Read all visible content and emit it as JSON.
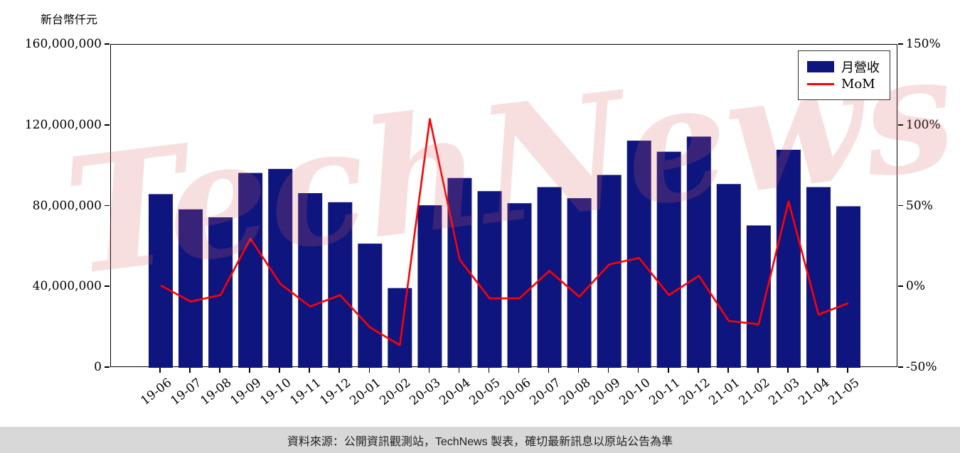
{
  "title": "新台幣仟元",
  "legend": {
    "bar_label": "月營收",
    "line_label": "MoM"
  },
  "footer": {
    "text": "資料來源：公開資訊觀測站，TechNews 製表，確切最新訊息以原站公告為準"
  },
  "watermark": "TechNews",
  "colors": {
    "bar": "#0f157e",
    "line": "#ff0000",
    "footer_bg": "#d8d8d8",
    "watermark": "rgba(214,96,96,0.20)"
  },
  "chart_data": {
    "type": "bar",
    "title": "",
    "categories": [
      "19-06",
      "19-07",
      "19-08",
      "19-09",
      "19-10",
      "19-11",
      "19-12",
      "20-01",
      "20-02",
      "20-03",
      "20-04",
      "20-05",
      "20-06",
      "20-07",
      "20-08",
      "20-09",
      "20-10",
      "20-11",
      "20-12",
      "21-01",
      "21-02",
      "21-03",
      "21-04",
      "21-05"
    ],
    "series": [
      {
        "name": "月營收",
        "type": "bar",
        "axis": "left",
        "values": [
          86000000,
          78500000,
          74500000,
          96500000,
          98500000,
          86500000,
          82000000,
          61500000,
          39500000,
          80500000,
          94000000,
          87500000,
          81500000,
          89500000,
          84000000,
          95500000,
          112500000,
          107000000,
          114500000,
          91000000,
          70500000,
          108000000,
          89500000,
          80000000
        ]
      },
      {
        "name": "MoM",
        "type": "line",
        "axis": "right",
        "unit": "%",
        "values": [
          1,
          -9,
          -5,
          30,
          2,
          -12,
          -5,
          -25,
          -36,
          104,
          17,
          -7,
          -7,
          10,
          -6,
          14,
          18,
          -5,
          7,
          -21,
          -23,
          53,
          -17,
          -10
        ]
      }
    ],
    "left_axis": {
      "label": "新台幣仟元",
      "min": 0,
      "max": 160000000,
      "ticks": [
        0,
        40000000,
        80000000,
        120000000,
        160000000
      ],
      "tick_labels": [
        "0",
        "40,000,000",
        "80,000,000",
        "120,000,000",
        "160,000,000"
      ]
    },
    "right_axis": {
      "label": "",
      "min": -50,
      "max": 150,
      "ticks": [
        -50,
        0,
        50,
        100,
        150
      ],
      "tick_labels": [
        "-50%",
        "0%",
        "50%",
        "100%",
        "150%"
      ]
    },
    "legend_position": "top-right-inside",
    "grid": false
  }
}
